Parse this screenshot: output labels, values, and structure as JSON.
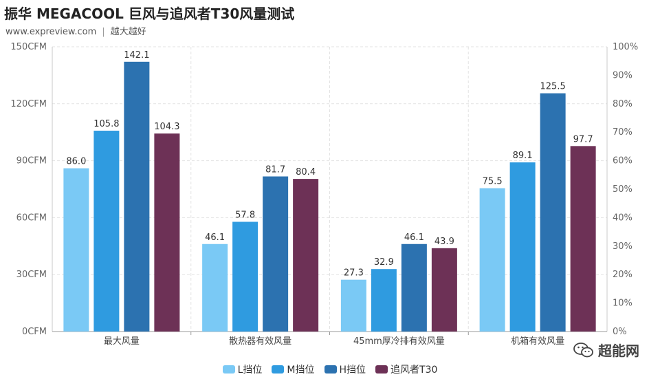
{
  "header": {
    "title": "振华 MEGACOOL 巨风与追风者T30风量测试",
    "site": "www.expreview.com",
    "separator": "|",
    "slogan": "越大越好"
  },
  "watermark": {
    "text": "超能网",
    "icon": "wechat-icon"
  },
  "chart_data": {
    "type": "bar",
    "title": "振华 MEGACOOL 巨风与追风者T30风量测试",
    "categories": [
      "最大风量",
      "散热器有效风量",
      "45mm厚冷排有效风量",
      "机箱有效风量"
    ],
    "series": [
      {
        "name": "L挡位",
        "color": "#7ac9f5",
        "values": [
          86.0,
          46.1,
          27.3,
          75.5
        ]
      },
      {
        "name": "M挡位",
        "color": "#2f9be0",
        "values": [
          105.8,
          57.8,
          32.9,
          89.1
        ]
      },
      {
        "name": "H挡位",
        "color": "#2c72b0",
        "values": [
          142.1,
          81.7,
          46.1,
          125.5
        ]
      },
      {
        "name": "追风者T30",
        "color": "#6d3156",
        "values": [
          104.3,
          80.4,
          43.9,
          97.7
        ]
      }
    ],
    "ylim": [
      0,
      150
    ],
    "yticks": [
      "0CFM",
      "30CFM",
      "60CFM",
      "90CFM",
      "120CFM",
      "150CFM"
    ],
    "y2lim": [
      0,
      100
    ],
    "y2ticks": [
      "0%",
      "10%",
      "20%",
      "30%",
      "40%",
      "50%",
      "60%",
      "70%",
      "80%",
      "90%",
      "100%"
    ],
    "grid": true,
    "legend": "bottom-center"
  }
}
